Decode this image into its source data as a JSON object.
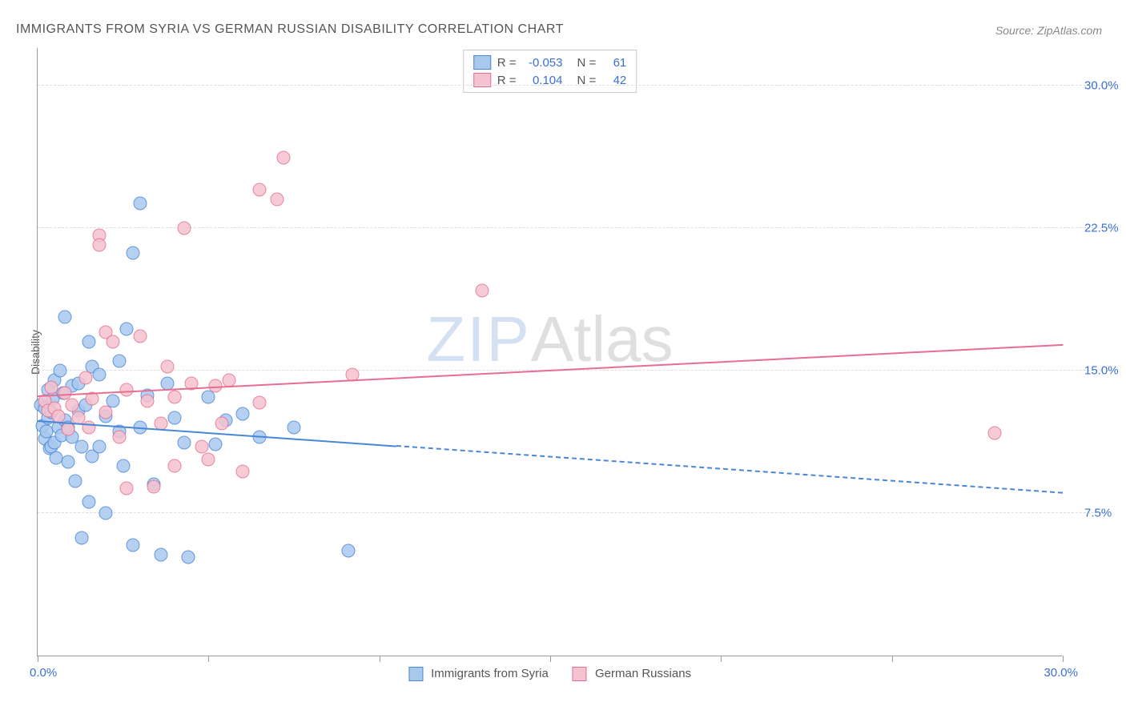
{
  "title": "IMMIGRANTS FROM SYRIA VS GERMAN RUSSIAN DISABILITY CORRELATION CHART",
  "source_label": "Source: ZipAtlas.com",
  "ylabel": "Disability",
  "watermark_zip": "ZIP",
  "watermark_atlas": "Atlas",
  "chart": {
    "type": "scatter",
    "xlim": [
      0,
      30
    ],
    "ylim": [
      0,
      32
    ],
    "x_unit": "%",
    "y_unit": "%",
    "xtick_positions": [
      0,
      5,
      10,
      15,
      20,
      25,
      30
    ],
    "xlim_labels": [
      "0.0%",
      "30.0%"
    ],
    "ygrid": [
      {
        "value": 7.5,
        "label": "7.5%"
      },
      {
        "value": 15.0,
        "label": "15.0%"
      },
      {
        "value": 22.5,
        "label": "22.5%"
      },
      {
        "value": 30.0,
        "label": "30.0%"
      }
    ],
    "background_color": "#ffffff",
    "grid_color": "#dddddd",
    "axis_color": "#999999",
    "marker_radius": 8.5,
    "marker_stroke_width": 1.5,
    "marker_fill_opacity": 0.25
  },
  "series": [
    {
      "key": "syria",
      "label": "Immigrants from Syria",
      "stroke_color": "#4a86d8",
      "fill_color": "#a9c8ee",
      "r_value": "-0.053",
      "n_value": "61",
      "trend": {
        "y_at_x0": 12.3,
        "y_at_x30": 8.5,
        "solid_until_x": 10.5
      },
      "points": [
        [
          0.1,
          13.2
        ],
        [
          0.15,
          12.1
        ],
        [
          0.2,
          11.4
        ],
        [
          0.2,
          13.0
        ],
        [
          0.25,
          11.8
        ],
        [
          0.3,
          12.5
        ],
        [
          0.3,
          14.0
        ],
        [
          0.35,
          10.9
        ],
        [
          0.4,
          12.8
        ],
        [
          0.4,
          11.0
        ],
        [
          0.45,
          13.5
        ],
        [
          0.5,
          11.2
        ],
        [
          0.5,
          14.5
        ],
        [
          0.55,
          10.4
        ],
        [
          0.6,
          12.0
        ],
        [
          0.65,
          15.0
        ],
        [
          0.7,
          11.6
        ],
        [
          0.75,
          13.8
        ],
        [
          0.8,
          12.4
        ],
        [
          0.8,
          17.8
        ],
        [
          0.9,
          12.0
        ],
        [
          0.9,
          10.2
        ],
        [
          1.0,
          11.5
        ],
        [
          1.0,
          14.2
        ],
        [
          1.1,
          9.2
        ],
        [
          1.2,
          12.9
        ],
        [
          1.2,
          14.3
        ],
        [
          1.3,
          6.2
        ],
        [
          1.3,
          11.0
        ],
        [
          1.4,
          13.2
        ],
        [
          1.5,
          16.5
        ],
        [
          1.5,
          8.1
        ],
        [
          1.6,
          15.2
        ],
        [
          1.6,
          10.5
        ],
        [
          1.8,
          11.0
        ],
        [
          1.8,
          14.8
        ],
        [
          2.0,
          12.6
        ],
        [
          2.0,
          7.5
        ],
        [
          2.2,
          13.4
        ],
        [
          2.4,
          15.5
        ],
        [
          2.4,
          11.8
        ],
        [
          2.5,
          10.0
        ],
        [
          2.6,
          17.2
        ],
        [
          2.8,
          5.8
        ],
        [
          2.8,
          21.2
        ],
        [
          3.0,
          12.0
        ],
        [
          3.0,
          23.8
        ],
        [
          3.2,
          13.7
        ],
        [
          3.4,
          9.0
        ],
        [
          3.6,
          5.3
        ],
        [
          3.8,
          14.3
        ],
        [
          4.0,
          12.5
        ],
        [
          4.3,
          11.2
        ],
        [
          4.4,
          5.2
        ],
        [
          5.0,
          13.6
        ],
        [
          5.2,
          11.1
        ],
        [
          5.5,
          12.4
        ],
        [
          6.0,
          12.7
        ],
        [
          6.5,
          11.5
        ],
        [
          7.5,
          12.0
        ],
        [
          9.1,
          5.5
        ]
      ]
    },
    {
      "key": "german_russians",
      "label": "German Russians",
      "stroke_color": "#e66f91",
      "fill_color": "#f5c3d0",
      "r_value": "0.104",
      "n_value": "42",
      "trend": {
        "y_at_x0": 13.6,
        "y_at_x30": 16.3,
        "solid_until_x": 30
      },
      "points": [
        [
          0.2,
          13.4
        ],
        [
          0.3,
          12.9
        ],
        [
          0.4,
          14.1
        ],
        [
          0.5,
          13.0
        ],
        [
          0.6,
          12.6
        ],
        [
          0.8,
          13.8
        ],
        [
          0.9,
          11.9
        ],
        [
          1.0,
          13.2
        ],
        [
          1.2,
          12.5
        ],
        [
          1.4,
          14.6
        ],
        [
          1.5,
          12.0
        ],
        [
          1.6,
          13.5
        ],
        [
          1.8,
          22.1
        ],
        [
          1.8,
          21.6
        ],
        [
          2.0,
          12.8
        ],
        [
          2.0,
          17.0
        ],
        [
          2.2,
          16.5
        ],
        [
          2.4,
          11.5
        ],
        [
          2.6,
          14.0
        ],
        [
          2.6,
          8.8
        ],
        [
          3.0,
          16.8
        ],
        [
          3.2,
          13.4
        ],
        [
          3.4,
          8.9
        ],
        [
          3.6,
          12.2
        ],
        [
          3.8,
          15.2
        ],
        [
          4.0,
          10.0
        ],
        [
          4.0,
          13.6
        ],
        [
          4.3,
          22.5
        ],
        [
          4.5,
          14.3
        ],
        [
          4.8,
          11.0
        ],
        [
          5.0,
          10.3
        ],
        [
          5.2,
          14.2
        ],
        [
          5.4,
          12.2
        ],
        [
          5.6,
          14.5
        ],
        [
          6.0,
          9.7
        ],
        [
          6.5,
          24.5
        ],
        [
          6.5,
          13.3
        ],
        [
          7.0,
          24.0
        ],
        [
          7.2,
          26.2
        ],
        [
          9.2,
          14.8
        ],
        [
          13.0,
          19.2
        ],
        [
          28.0,
          11.7
        ]
      ]
    }
  ],
  "corr_legend": {
    "r_label": "R =",
    "n_label": "N ="
  },
  "tick_label_color": "#3b6fd6",
  "title_color": "#555555"
}
